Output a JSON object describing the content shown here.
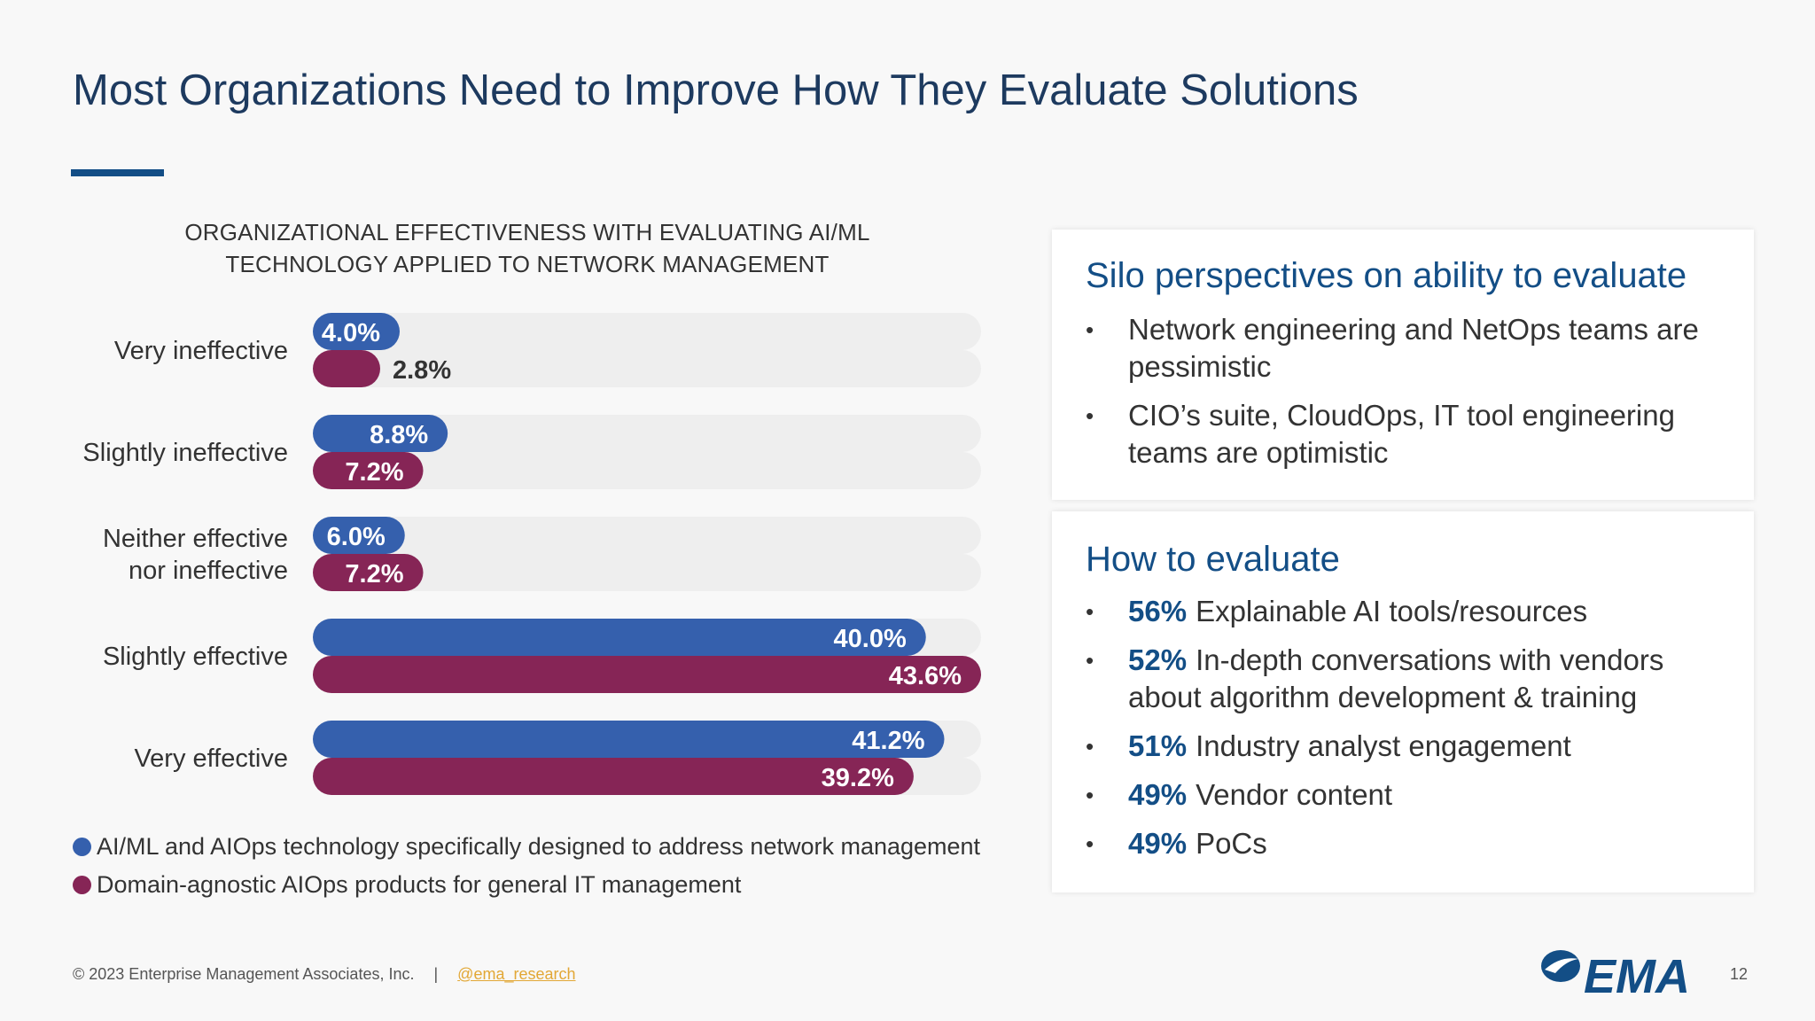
{
  "title": "Most Organizations Need to Improve How They Evaluate Solutions",
  "chart_data": {
    "type": "bar",
    "orientation": "horizontal",
    "title_lines": [
      "ORGANIZATIONAL EFFECTIVENESS WITH EVALUATING AI/ML",
      "TECHNOLOGY APPLIED TO NETWORK MANAGEMENT"
    ],
    "categories": [
      [
        "Very ineffective"
      ],
      [
        "Slightly ineffective"
      ],
      [
        "Neither effective",
        "nor ineffective"
      ],
      [
        "Slightly effective"
      ],
      [
        "Very effective"
      ]
    ],
    "series": [
      {
        "name": "AI/ML and AIOps technology specifically designed to address network management",
        "color": "#3560ad",
        "values": [
          4.0,
          8.8,
          6.0,
          40.0,
          41.2
        ],
        "labels": [
          "4.0%",
          "8.8%",
          "6.0%",
          "40.0%",
          "41.2%"
        ]
      },
      {
        "name": "Domain-agnostic AIOps products for general IT management",
        "color": "#862556",
        "values": [
          2.8,
          7.2,
          7.2,
          43.6,
          39.2
        ],
        "labels": [
          "2.8%",
          "7.2%",
          "7.2%",
          "43.6%",
          "39.2%"
        ]
      }
    ],
    "xlim": [
      0,
      43.6
    ],
    "track_color": "#eeeeee",
    "legend_position": "bottom-left"
  },
  "silo_card": {
    "title": "Silo perspectives on ability to evaluate",
    "bullets": [
      "Network engineering and NetOps teams are pessimistic",
      "CIO’s suite, CloudOps, IT tool engineering teams are optimistic"
    ]
  },
  "evaluate_card": {
    "title": "How to evaluate",
    "items": [
      {
        "pct": "56%",
        "text": "Explainable AI tools/resources"
      },
      {
        "pct": "52%",
        "text": "In-depth conversations with vendors about algorithm development & training"
      },
      {
        "pct": "51%",
        "text": "Industry analyst engagement"
      },
      {
        "pct": "49%",
        "text": "Vendor content"
      },
      {
        "pct": "49%",
        "text": "PoCs"
      }
    ]
  },
  "bullet_glyph": "•",
  "footer": {
    "copyright": "© 2023 Enterprise Management Associates, Inc.",
    "separator": "|",
    "handle": "@ema_research",
    "page_number": "12"
  },
  "logo": {
    "icon": "ema-logo-icon",
    "text": "EMA",
    "color": "#134e86"
  }
}
